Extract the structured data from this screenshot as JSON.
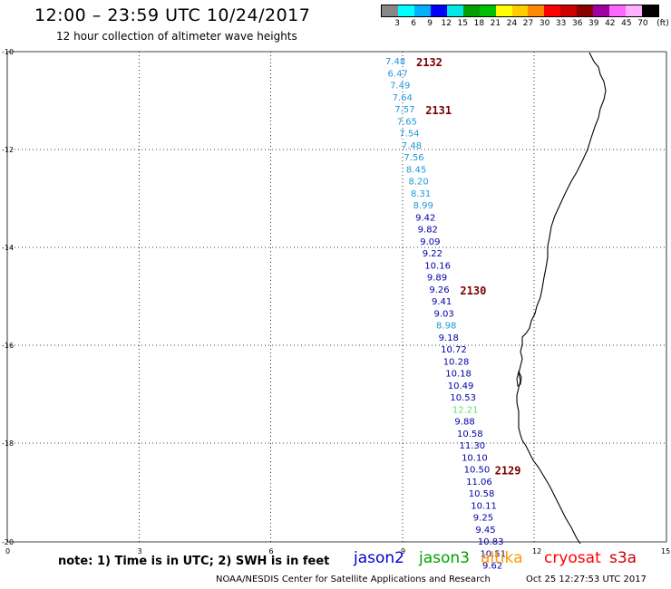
{
  "header": {
    "title": "12:00 – 23:59 UTC 10/24/2017",
    "subtitle": "12 hour collection of altimeter wave heights"
  },
  "legend": {
    "colors": [
      "#888888",
      "#00ffff",
      "#00b0ff",
      "#0000ff",
      "#00e8e8",
      "#00a000",
      "#00c000",
      "#ffff00",
      "#ffcc00",
      "#ff8800",
      "#ff0000",
      "#cc0000",
      "#880000",
      "#a000a0",
      "#ff66ff",
      "#ffb0ff",
      "#000000"
    ],
    "labels": [
      "3",
      "6",
      "9",
      "12",
      "15",
      "18",
      "21",
      "24",
      "27",
      "30",
      "33",
      "36",
      "39",
      "42",
      "45",
      "70",
      "(ft)"
    ]
  },
  "axes": {
    "x_ticks": [
      "0",
      "3",
      "6",
      "9",
      "12",
      "15"
    ],
    "y_ticks": [
      "-10",
      "-12",
      "-14",
      "-16",
      "-18",
      "-20"
    ]
  },
  "track": {
    "points": [
      {
        "v": "7.48",
        "c": "#1e9ad8"
      },
      {
        "v": "6.47",
        "c": "#1e9ad8"
      },
      {
        "v": "7.49",
        "c": "#1e9ad8"
      },
      {
        "v": "7.64",
        "c": "#1e9ad8"
      },
      {
        "v": "7.57",
        "c": "#1e9ad8"
      },
      {
        "v": "7.65",
        "c": "#1e9ad8"
      },
      {
        "v": "7.54",
        "c": "#1e9ad8"
      },
      {
        "v": "7.48",
        "c": "#1e9ad8"
      },
      {
        "v": "7.56",
        "c": "#1e9ad8"
      },
      {
        "v": "8.45",
        "c": "#1e9ad8"
      },
      {
        "v": "8.20",
        "c": "#1e9ad8"
      },
      {
        "v": "8.31",
        "c": "#1e9ad8"
      },
      {
        "v": "8.99",
        "c": "#1e9ad8"
      },
      {
        "v": "9.42",
        "c": "#0000a8"
      },
      {
        "v": "9.82",
        "c": "#0000a8"
      },
      {
        "v": "9.09",
        "c": "#0000a8"
      },
      {
        "v": "9.22",
        "c": "#0000a8"
      },
      {
        "v": "10.16",
        "c": "#0000a8"
      },
      {
        "v": "9.89",
        "c": "#0000a8"
      },
      {
        "v": "9.26",
        "c": "#0000a8"
      },
      {
        "v": "9.41",
        "c": "#0000a8"
      },
      {
        "v": "9.03",
        "c": "#0000a8"
      },
      {
        "v": "8.98",
        "c": "#1e9ad8"
      },
      {
        "v": "9.18",
        "c": "#0000a8"
      },
      {
        "v": "10.72",
        "c": "#0000a8"
      },
      {
        "v": "10.28",
        "c": "#0000a8"
      },
      {
        "v": "10.18",
        "c": "#0000a8"
      },
      {
        "v": "10.49",
        "c": "#0000a8"
      },
      {
        "v": "10.53",
        "c": "#0000a8"
      },
      {
        "v": "12.21",
        "c": "#66e066"
      },
      {
        "v": "9.88",
        "c": "#0000a8"
      },
      {
        "v": "10.58",
        "c": "#0000a8"
      },
      {
        "v": "11.30",
        "c": "#0000a8"
      },
      {
        "v": "10.10",
        "c": "#0000a8"
      },
      {
        "v": "10.50",
        "c": "#0000a8"
      },
      {
        "v": "11.06",
        "c": "#0000a8"
      },
      {
        "v": "10.58",
        "c": "#0000a8"
      },
      {
        "v": "10.11",
        "c": "#0000a8"
      },
      {
        "v": "9.25",
        "c": "#0000a8"
      },
      {
        "v": "9.45",
        "c": "#0000a8"
      },
      {
        "v": "10.83",
        "c": "#0000a8"
      },
      {
        "v": "10.51",
        "c": "#0000a8"
      },
      {
        "v": "9.62",
        "c": "#0000a8"
      }
    ],
    "rev_labels": [
      {
        "text": "2132",
        "after": 0
      },
      {
        "text": "2131",
        "after": 4
      },
      {
        "text": "2130",
        "after": 19
      },
      {
        "text": "2129",
        "after": 34
      }
    ]
  },
  "note": "note: 1) Time is in UTC; 2) SWH is in feet",
  "satellites": [
    {
      "name": "jason2",
      "color": "#0000cc"
    },
    {
      "name": "jason3",
      "color": "#00a000"
    },
    {
      "name": "altika",
      "color": "#ff9900"
    },
    {
      "name": "cryosat",
      "color": "#ff0000"
    },
    {
      "name": "s3a",
      "color": "#cc0000"
    }
  ],
  "footer": {
    "credit": "NOAA/NESDIS Center for Satellite Applications and Research",
    "timestamp": "Oct 25 12:27:53 UTC 2017"
  }
}
